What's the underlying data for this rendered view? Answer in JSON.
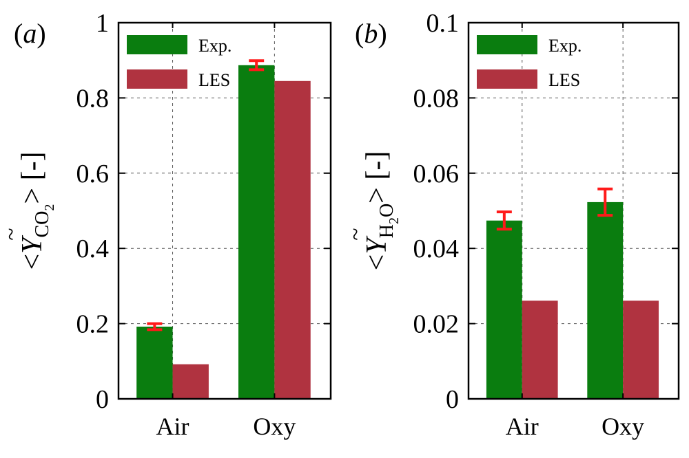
{
  "colors": {
    "exp": "#0a7d0f",
    "les": "#b03340",
    "error": "#ff1a1a"
  },
  "chart_data": [
    {
      "type": "bar",
      "panel_label": "a",
      "ylabel": {
        "prefix": "<",
        "symbol": "Y",
        "subscript": "CO",
        "subscript_sub": "2",
        "suffix": "> [-]"
      },
      "categories": [
        "Air",
        "Oxy"
      ],
      "ylim": [
        0,
        1
      ],
      "yticks": [
        0,
        0.2,
        0.4,
        0.6,
        0.8,
        1
      ],
      "ytick_labels": [
        "0",
        "0.2",
        "0.4",
        "0.6",
        "0.8",
        "1"
      ],
      "grid": true,
      "legend_position": "top-left",
      "series": [
        {
          "name": "Exp.",
          "values": [
            0.192,
            0.887
          ],
          "errors": [
            0.008,
            0.012
          ]
        },
        {
          "name": "LES",
          "values": [
            0.092,
            0.845
          ]
        }
      ]
    },
    {
      "type": "bar",
      "panel_label": "b",
      "ylabel": {
        "prefix": "<",
        "symbol": "Y",
        "subscript": "H",
        "subscript_sub": "2",
        "subscript_after": "O",
        "suffix": "> [-]"
      },
      "categories": [
        "Air",
        "Oxy"
      ],
      "ylim": [
        0,
        0.1
      ],
      "yticks": [
        0,
        0.02,
        0.04,
        0.06,
        0.08,
        0.1
      ],
      "ytick_labels": [
        "0",
        "0.02",
        "0.04",
        "0.06",
        "0.08",
        "0.1"
      ],
      "grid": true,
      "legend_position": "top-left",
      "series": [
        {
          "name": "Exp.",
          "values": [
            0.0474,
            0.0523
          ],
          "errors": [
            0.0023,
            0.0035
          ]
        },
        {
          "name": "LES",
          "values": [
            0.0261,
            0.0261
          ]
        }
      ]
    }
  ]
}
